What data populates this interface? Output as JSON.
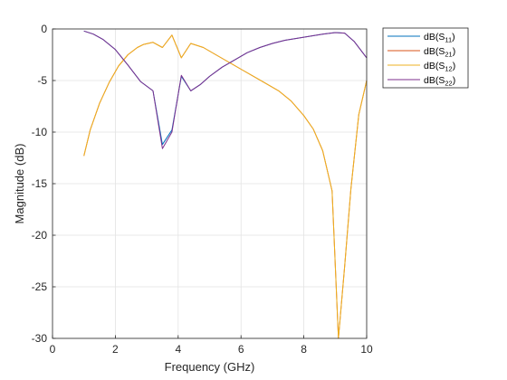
{
  "chart_data": {
    "type": "line",
    "title": "",
    "xlabel": "Frequency (GHz)",
    "ylabel": "Magnitude (dB)",
    "xlim": [
      0,
      10
    ],
    "ylim": [
      -30,
      0
    ],
    "x_ticks": [
      "0",
      "2",
      "4",
      "6",
      "8",
      "10"
    ],
    "y_ticks": [
      "0",
      "-5",
      "-10",
      "-15",
      "-20",
      "-25",
      "-30"
    ],
    "grid": true,
    "legend_position": "outside-top-right",
    "series": [
      {
        "name": "dB(S11)",
        "legend": {
          "prefix": "dB(S",
          "sub": "11",
          "suffix": ")"
        },
        "color": "#0072BD",
        "x": [
          1.0,
          1.3,
          1.6,
          2.0,
          2.4,
          2.8,
          3.2,
          3.5,
          3.8,
          4.1,
          4.4,
          4.7,
          5.0,
          5.4,
          5.8,
          6.2,
          6.6,
          7.0,
          7.4,
          7.8,
          8.2,
          8.6,
          9.0,
          9.3,
          9.6,
          10.0
        ],
        "y": [
          -0.2,
          -0.5,
          -1.0,
          -2.0,
          -3.5,
          -5.1,
          -6.0,
          -11.2,
          -9.8,
          -4.6,
          -6.0,
          -5.4,
          -4.6,
          -3.7,
          -3.0,
          -2.3,
          -1.8,
          -1.4,
          -1.1,
          -0.9,
          -0.7,
          -0.5,
          -0.35,
          -0.4,
          -1.2,
          -2.8
        ]
      },
      {
        "name": "dB(S21)",
        "legend": {
          "prefix": "dB(S",
          "sub": "21",
          "suffix": ")"
        },
        "color": "#D95319",
        "x": [
          1.0,
          1.2,
          1.5,
          1.8,
          2.1,
          2.4,
          2.7,
          2.9,
          3.2,
          3.5,
          3.8,
          4.1,
          4.4,
          4.8,
          5.2,
          5.6,
          6.0,
          6.4,
          6.8,
          7.2,
          7.6,
          8.0,
          8.3,
          8.6,
          8.9,
          9.1,
          9.3,
          9.5,
          9.75,
          10.0
        ],
        "y": [
          -12.3,
          -9.8,
          -7.2,
          -5.2,
          -3.6,
          -2.5,
          -1.8,
          -1.5,
          -1.3,
          -1.8,
          -0.6,
          -2.8,
          -1.4,
          -1.8,
          -2.5,
          -3.2,
          -3.9,
          -4.6,
          -5.3,
          -6.0,
          -7.0,
          -8.4,
          -9.7,
          -11.8,
          -15.7,
          -30.0,
          -23.0,
          -15.5,
          -8.3,
          -5.0
        ]
      },
      {
        "name": "dB(S12)",
        "legend": {
          "prefix": "dB(S",
          "sub": "12",
          "suffix": ")"
        },
        "color": "#EDB120",
        "x": [
          1.0,
          1.2,
          1.5,
          1.8,
          2.1,
          2.4,
          2.7,
          2.9,
          3.2,
          3.5,
          3.8,
          4.1,
          4.4,
          4.8,
          5.2,
          5.6,
          6.0,
          6.4,
          6.8,
          7.2,
          7.6,
          8.0,
          8.3,
          8.6,
          8.9,
          9.1,
          9.3,
          9.5,
          9.75,
          10.0
        ],
        "y": [
          -12.3,
          -9.8,
          -7.2,
          -5.2,
          -3.6,
          -2.5,
          -1.8,
          -1.5,
          -1.3,
          -1.8,
          -0.6,
          -2.8,
          -1.4,
          -1.8,
          -2.5,
          -3.2,
          -3.9,
          -4.6,
          -5.3,
          -6.0,
          -7.0,
          -8.4,
          -9.7,
          -11.8,
          -15.7,
          -30.0,
          -23.0,
          -15.5,
          -8.3,
          -5.0
        ]
      },
      {
        "name": "dB(S22)",
        "legend": {
          "prefix": "dB(S",
          "sub": "22",
          "suffix": ")"
        },
        "color": "#7E2F8E",
        "x": [
          1.0,
          1.3,
          1.6,
          2.0,
          2.4,
          2.8,
          3.2,
          3.5,
          3.8,
          4.1,
          4.4,
          4.7,
          5.0,
          5.4,
          5.8,
          6.2,
          6.6,
          7.0,
          7.4,
          7.8,
          8.2,
          8.6,
          9.0,
          9.3,
          9.6,
          10.0
        ],
        "y": [
          -0.2,
          -0.5,
          -1.0,
          -2.0,
          -3.5,
          -5.1,
          -6.0,
          -11.6,
          -10.0,
          -4.5,
          -6.0,
          -5.4,
          -4.6,
          -3.7,
          -3.0,
          -2.3,
          -1.8,
          -1.4,
          -1.1,
          -0.9,
          -0.7,
          -0.5,
          -0.35,
          -0.4,
          -1.2,
          -2.8
        ]
      }
    ]
  }
}
